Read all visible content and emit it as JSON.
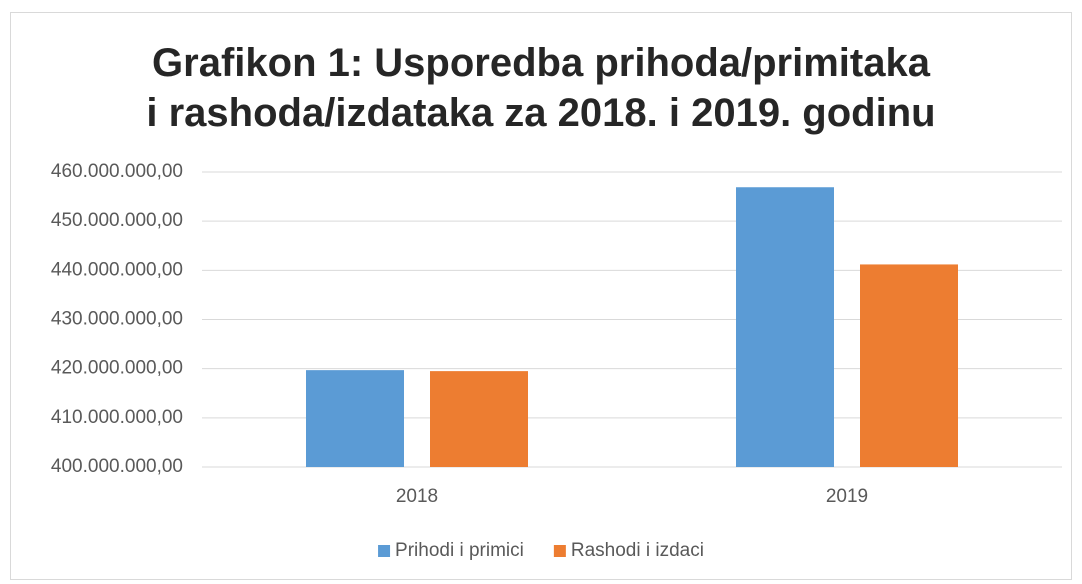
{
  "chart_data": {
    "type": "bar",
    "title": "Grafikon 1: Usporedba prihoda/primitaka i rashoda/izdataka za 2018. i 2019. godinu",
    "categories": [
      "2018",
      "2019"
    ],
    "series": [
      {
        "name": "Prihodi i primici",
        "color": "#5b9bd5",
        "values": [
          419700000,
          456900000
        ]
      },
      {
        "name": "Rashodi i izdaci",
        "color": "#ed7d31",
        "values": [
          419500000,
          441200000
        ]
      }
    ],
    "ylim": [
      400000000,
      460000000
    ],
    "yticks": [
      {
        "value": 400000000,
        "label": "400.000.000,00"
      },
      {
        "value": 410000000,
        "label": "410.000.000,00"
      },
      {
        "value": 420000000,
        "label": "420.000.000,00"
      },
      {
        "value": 430000000,
        "label": "430.000.000,00"
      },
      {
        "value": 440000000,
        "label": "440.000.000,00"
      },
      {
        "value": 450000000,
        "label": "450.000.000,00"
      },
      {
        "value": 460000000,
        "label": "460.000.000,00"
      }
    ],
    "grid": true,
    "legend": "bottom"
  }
}
